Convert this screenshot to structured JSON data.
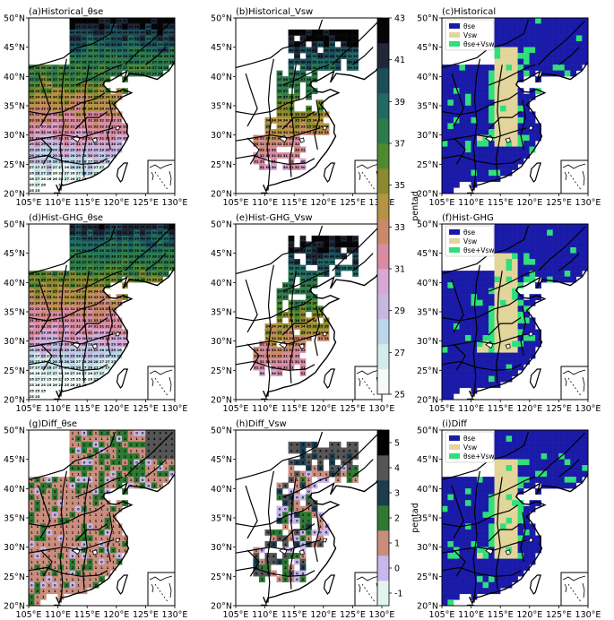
{
  "figure": {
    "x_ticks": [
      "105°E",
      "110°E",
      "115°E",
      "120°E",
      "125°E",
      "130°E"
    ],
    "y_ticks": [
      "20°N",
      "25°N",
      "30°N",
      "35°N",
      "40°N",
      "45°N",
      "50°N"
    ],
    "colorbar_top": {
      "label": "pentad",
      "ticks": [
        "25",
        "27",
        "29",
        "31",
        "33",
        "35",
        "37",
        "39",
        "41",
        "43"
      ],
      "colors": [
        "#f4fbf8",
        "#d3ece9",
        "#bcd7ec",
        "#c7b8e2",
        "#d7a8d4",
        "#d88ca1",
        "#c98a69",
        "#b39344",
        "#8a8a30",
        "#4f8a33",
        "#2f7a4c",
        "#216a61",
        "#1e4d5a",
        "#202838",
        "#060608"
      ]
    },
    "colorbar_diff": {
      "label": "pentad",
      "ticks": [
        "-1",
        "0",
        "1",
        "2",
        "3",
        "4",
        "5"
      ],
      "colors": [
        "#e2f4ef",
        "#c9b6ea",
        "#c98d7d",
        "#2f7832",
        "#1b3d4e",
        "#555555",
        "#000000"
      ]
    },
    "category_legend": [
      {
        "label": "θse",
        "color": "#1a1aa8"
      },
      {
        "label": "Vsw",
        "color": "#e2d59a"
      },
      {
        "label": "θse+Vsw",
        "color": "#2ee07a"
      }
    ]
  },
  "chart_data": [
    {
      "panel": "a",
      "title": "(a)Historical_θse",
      "type": "heatmap",
      "field": "onset pentad of θse criterion",
      "value_range": [
        25,
        43
      ],
      "extent": {
        "lon": [
          105,
          130
        ],
        "lat": [
          20,
          50
        ]
      },
      "region": "full",
      "pattern": "south_to_north_gradient"
    },
    {
      "panel": "b",
      "title": "(b)Historical_Vsw",
      "type": "heatmap",
      "field": "onset pentad of Vsw criterion",
      "value_range": [
        25,
        43
      ],
      "extent": {
        "lon": [
          105,
          130
        ],
        "lat": [
          20,
          50
        ]
      },
      "region": "band",
      "pattern": "sparse_band"
    },
    {
      "panel": "c",
      "title": "(c)Historical",
      "type": "categorical",
      "categories": [
        "θse",
        "Vsw",
        "θse+Vsw"
      ],
      "extent": {
        "lon": [
          105,
          130
        ],
        "lat": [
          20,
          50
        ]
      },
      "region": "categorical"
    },
    {
      "panel": "d",
      "title": "(d)Hist-GHG_θse",
      "type": "heatmap",
      "field": "onset pentad of θse criterion",
      "value_range": [
        25,
        43
      ],
      "extent": {
        "lon": [
          105,
          130
        ],
        "lat": [
          20,
          50
        ]
      },
      "region": "full",
      "pattern": "south_to_north_gradient"
    },
    {
      "panel": "e",
      "title": "(e)Hist-GHG_Vsw",
      "type": "heatmap",
      "field": "onset pentad of Vsw criterion",
      "value_range": [
        25,
        43
      ],
      "extent": {
        "lon": [
          105,
          130
        ],
        "lat": [
          20,
          50
        ]
      },
      "region": "band",
      "pattern": "sparse_band"
    },
    {
      "panel": "f",
      "title": "(f)Hist-GHG",
      "type": "categorical",
      "categories": [
        "θse",
        "Vsw",
        "θse+Vsw"
      ],
      "extent": {
        "lon": [
          105,
          130
        ],
        "lat": [
          20,
          50
        ]
      },
      "region": "categorical"
    },
    {
      "panel": "g",
      "title": "(g)Diff_θse",
      "type": "heatmap",
      "field": "difference in onset pentad",
      "value_range": [
        -1,
        5
      ],
      "extent": {
        "lon": [
          105,
          130
        ],
        "lat": [
          20,
          50
        ]
      },
      "region": "full",
      "pattern": "diff"
    },
    {
      "panel": "h",
      "title": "(h)Diff_Vsw",
      "type": "heatmap",
      "field": "difference in onset pentad",
      "value_range": [
        -1,
        5
      ],
      "extent": {
        "lon": [
          105,
          130
        ],
        "lat": [
          20,
          50
        ]
      },
      "region": "band",
      "pattern": "diff"
    },
    {
      "panel": "i",
      "title": "(i)Diff",
      "type": "categorical",
      "categories": [
        "θse",
        "Vsw",
        "θse+Vsw"
      ],
      "extent": {
        "lon": [
          105,
          130
        ],
        "lat": [
          20,
          50
        ]
      },
      "region": "categorical"
    }
  ]
}
